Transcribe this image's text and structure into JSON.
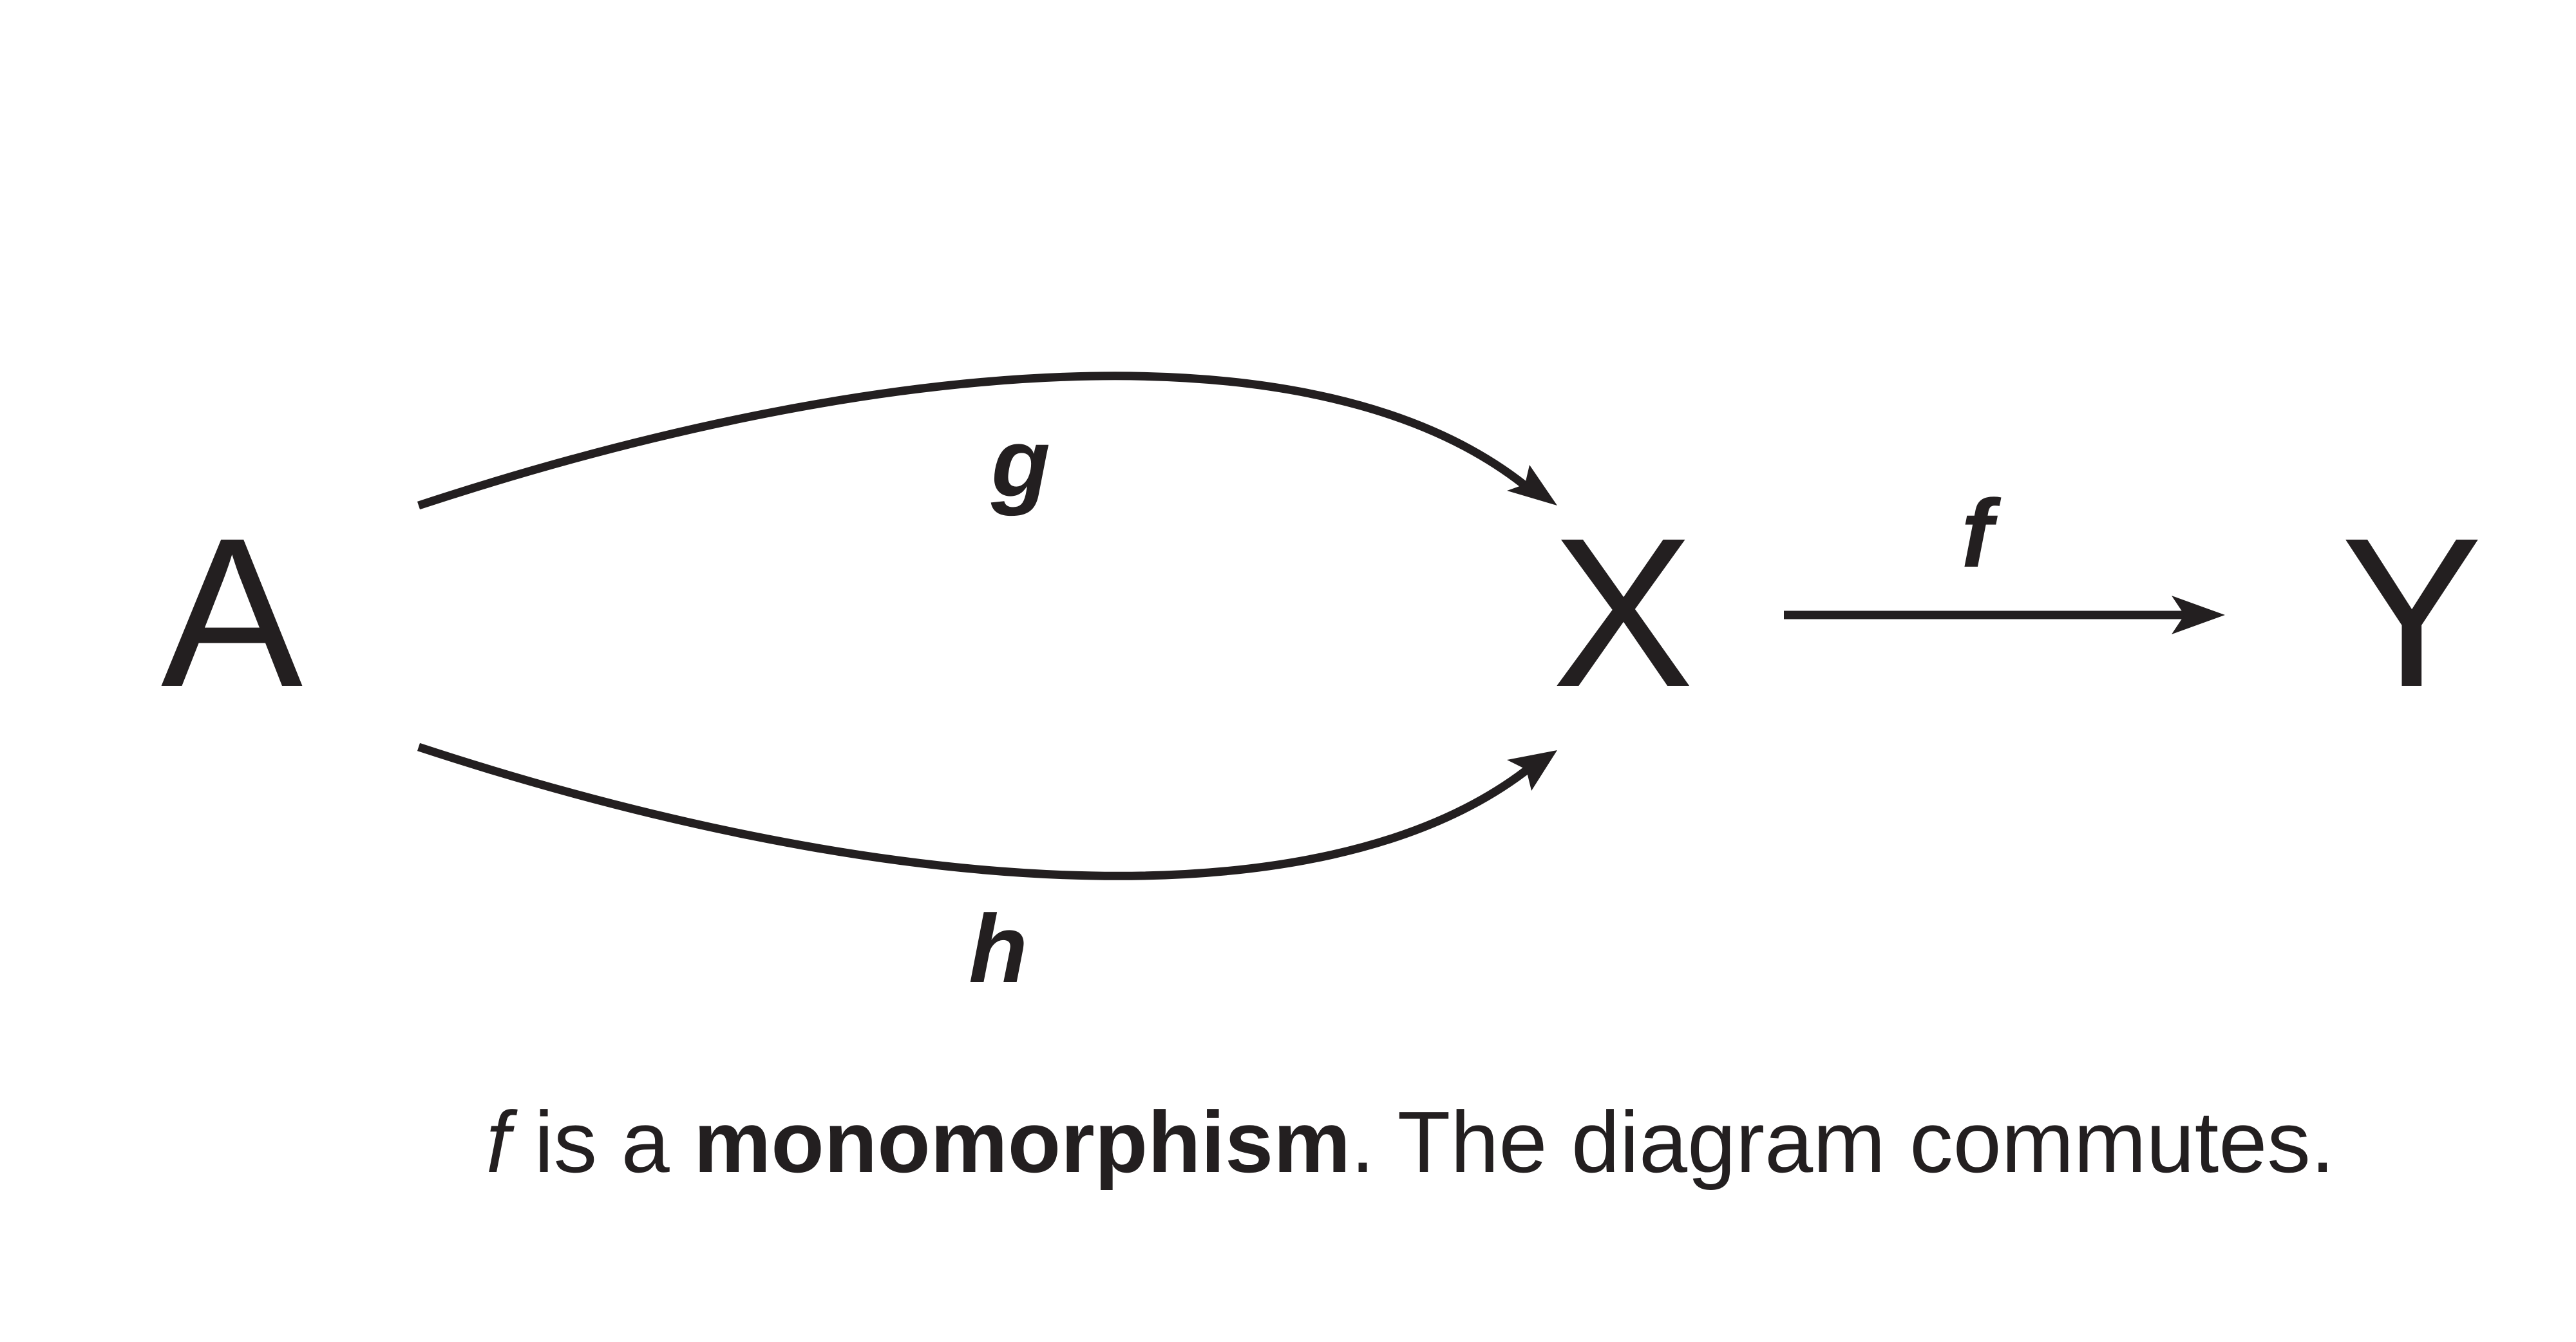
{
  "nodes": {
    "a": "A",
    "x": "X",
    "y": "Y"
  },
  "arrows": {
    "g": "g",
    "h": "h",
    "f": "f"
  },
  "caption": {
    "f": "f",
    "is_a": " is a ",
    "term": "monomorphism",
    "rest": ". The diagram commutes."
  },
  "colors": {
    "ink": "#231f20",
    "background": "#ffffff"
  }
}
